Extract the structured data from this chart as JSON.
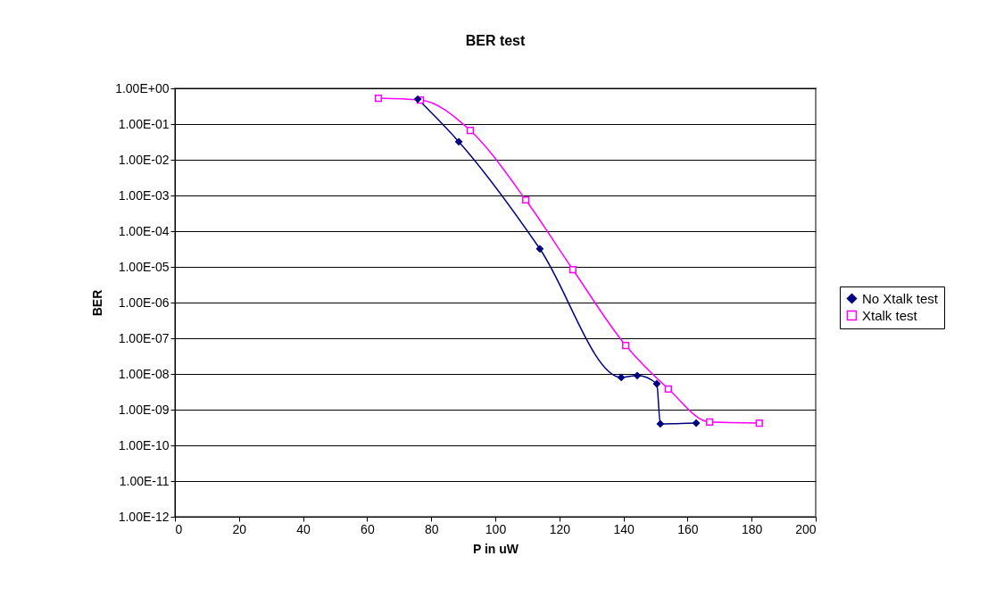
{
  "chart_data": {
    "type": "line",
    "title": "BER test",
    "xlabel": "P in uW",
    "ylabel": "BER",
    "log": "y",
    "grid": "y",
    "legend": "right",
    "xlim": [
      0,
      200
    ],
    "xticks": [
      0,
      20,
      40,
      60,
      80,
      100,
      120,
      140,
      160,
      180,
      200
    ],
    "ylim": [
      1e-12,
      1
    ],
    "yticks": [
      {
        "value": 1e-12,
        "label": "1.00E-12"
      },
      {
        "value": 1e-11,
        "label": "1.00E-11"
      },
      {
        "value": 1e-10,
        "label": "1.00E-10"
      },
      {
        "value": 1e-09,
        "label": "1.00E-09"
      },
      {
        "value": 1e-08,
        "label": "1.00E-08"
      },
      {
        "value": 1e-07,
        "label": "1.00E-07"
      },
      {
        "value": 1e-06,
        "label": "1.00E-06"
      },
      {
        "value": 1e-05,
        "label": "1.00E-05"
      },
      {
        "value": 0.0001,
        "label": "1.00E-04"
      },
      {
        "value": 0.001,
        "label": "1.00E-03"
      },
      {
        "value": 0.01,
        "label": "1.00E-02"
      },
      {
        "value": 0.1,
        "label": "1.00E-01"
      },
      {
        "value": 1,
        "label": "1.00E+00"
      }
    ],
    "series": [
      {
        "name": "No Xtalk test",
        "color": "#000080",
        "marker": "diamond",
        "x": [
          75.8,
          88.6,
          113.9,
          139.3,
          144.3,
          150.4,
          151.5,
          162.7
        ],
        "values": [
          0.5,
          0.032,
          3.2e-05,
          8e-09,
          9e-09,
          5.3e-09,
          4e-10,
          4.2e-10
        ]
      },
      {
        "name": "Xtalk test",
        "color": "#ff00ff",
        "marker": "square",
        "x": [
          63.5,
          76.6,
          92.2,
          109.5,
          124.2,
          140.7,
          154,
          166.9,
          182.4
        ],
        "values": [
          0.53,
          0.47,
          0.066,
          0.00075,
          8.4e-06,
          6.3e-08,
          3.8e-09,
          4.5e-10,
          4.2e-10
        ]
      }
    ]
  }
}
